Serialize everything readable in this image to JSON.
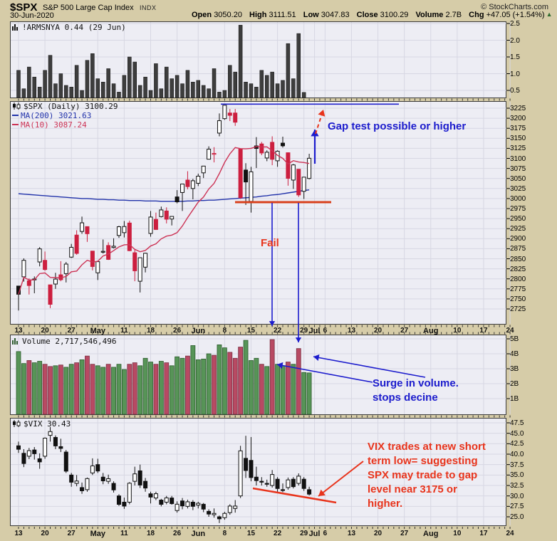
{
  "header": {
    "symbol": "$SPX",
    "name": "S&P 500 Large Cap Index",
    "exchange": "INDX",
    "copyright": "© StockCharts.com",
    "date": "30-Jun-2020",
    "quote": [
      {
        "label": "Open",
        "value": "3050.20"
      },
      {
        "label": "High",
        "value": "3111.51"
      },
      {
        "label": "Low",
        "value": "3047.83"
      },
      {
        "label": "Close",
        "value": "3100.29"
      },
      {
        "label": "Volume",
        "value": "2.7B"
      },
      {
        "label": "Chg",
        "value": "+47.05 (+1.54%)"
      }
    ],
    "chg_direction": "up"
  },
  "panels": {
    "arms": {
      "legend": "!ARMSNYA 0.44 (29 Jun)",
      "yticks": [
        "2.5",
        "2.0",
        "1.5",
        "1.0",
        "0.5"
      ]
    },
    "spx": {
      "legend": "$SPX (Daily) 3100.29",
      "ma200_label": "MA(200) 3021.63",
      "ma10_label": "MA(10) 3087.24"
    },
    "volume": {
      "legend": "Volume 2,717,546,496",
      "yticks": [
        "5B",
        "4B",
        "3B",
        "2B",
        "1B"
      ]
    },
    "vix": {
      "legend": "$VIX 30.43",
      "yticks": [
        "47.5",
        "45.0",
        "42.5",
        "40.0",
        "37.5",
        "35.0",
        "32.5",
        "30.0",
        "27.5",
        "25.0"
      ]
    }
  },
  "annotations": {
    "gap_text": "Gap test possible or higher",
    "fail_text": "Fail",
    "surge_line1": "Surge in volume.",
    "surge_line2": "stops decine",
    "vix_note_lines": [
      "VIX trades at new short",
      "term low= suggesting",
      "SPX may trade to gap",
      "level near 3175 or",
      "higher."
    ]
  },
  "colors": {
    "annotation_blue": "#1c1ccd",
    "annotation_red": "#e8341c",
    "candle_red": "#cc1f3f",
    "candle_black": "#111111",
    "ma200_blue": "#2233aa",
    "ma10_red": "#cc3355",
    "vol_green": "#579457",
    "vol_green_edge": "#2e5c2e",
    "vol_red": "#b84a63",
    "vol_red_edge": "#7a2e42",
    "arms_bar": "#3d3d3d",
    "support_red": "#d8401c",
    "hline_blue": "#2222cc",
    "grid": "#d7d7e3",
    "panel_bg": "#ededf4",
    "page_bg": "#d6cca8"
  },
  "x_axis": {
    "total_days": 94,
    "labels": [
      {
        "t": "13",
        "i": 0
      },
      {
        "t": "20",
        "i": 5
      },
      {
        "t": "27",
        "i": 10
      },
      {
        "t": "May",
        "i": 15,
        "m": 1
      },
      {
        "t": "11",
        "i": 20
      },
      {
        "t": "18",
        "i": 25
      },
      {
        "t": "26",
        "i": 30
      },
      {
        "t": "Jun",
        "i": 34,
        "m": 1
      },
      {
        "t": "8",
        "i": 39
      },
      {
        "t": "15",
        "i": 44
      },
      {
        "t": "22",
        "i": 49
      },
      {
        "t": "29",
        "i": 54
      },
      {
        "t": "Jul",
        "i": 56,
        "m": 1
      },
      {
        "t": "6",
        "i": 58
      },
      {
        "t": "13",
        "i": 63
      },
      {
        "t": "20",
        "i": 68
      },
      {
        "t": "27",
        "i": 73
      },
      {
        "t": "Aug",
        "i": 78,
        "m": 1
      },
      {
        "t": "10",
        "i": 83
      },
      {
        "t": "17",
        "i": 88
      },
      {
        "t": "24",
        "i": 93
      }
    ]
  },
  "chart_data": [
    {
      "type": "bar",
      "title": "!ARMSNYA (NYSE Arms Index / TRIN)",
      "last_value": 0.44,
      "last_date": "29 Jun",
      "ylim": [
        0.22,
        2.56
      ],
      "yticks": [
        2.5,
        2.0,
        1.5,
        1.0,
        0.5
      ],
      "values": [
        1.1,
        0.55,
        1.2,
        0.9,
        0.6,
        1.1,
        1.55,
        0.7,
        1.0,
        0.65,
        0.6,
        1.25,
        0.5,
        1.4,
        1.6,
        0.85,
        0.75,
        1.15,
        0.7,
        0.45,
        0.95,
        1.5,
        1.35,
        0.65,
        0.9,
        0.5,
        1.3,
        0.55,
        1.2,
        0.85,
        0.95,
        0.7,
        1.1,
        0.75,
        0.8,
        0.65,
        0.55,
        1.15,
        0.45,
        0.5,
        1.25,
        1.05,
        2.45,
        0.75,
        0.7,
        0.6,
        1.1,
        0.95,
        1.05,
        0.7,
        0.8,
        1.9,
        0.85,
        2.2,
        0.44
      ]
    },
    {
      "type": "candlestick",
      "title": "$SPX Daily",
      "last_close": 3100.29,
      "ylim": [
        2682,
        3246
      ],
      "ytick_step": 25,
      "ytick_top": 3225,
      "ytick_bottom": 2725,
      "prev_close_seed": 2750,
      "annotation_levels": {
        "gap_line": 3235,
        "support_line": 2991
      },
      "ma200": [
        3012,
        3011,
        3010,
        3009,
        3008,
        3007,
        3006,
        3005,
        3004,
        3003,
        3002,
        3001,
        3000,
        3000,
        2999,
        2998,
        2998,
        2997,
        2997,
        2996,
        2996,
        2995,
        2995,
        2995,
        2994,
        2994,
        2994,
        2993,
        2993,
        2993,
        2993,
        2993,
        2994,
        2994,
        2995,
        2995,
        2996,
        2996,
        2997,
        2998,
        2999,
        3000,
        3001,
        3002,
        3003,
        3004,
        3006,
        3007,
        3009,
        3010,
        3012,
        3014,
        3016,
        3018,
        3020,
        3021.63
      ],
      "ma10_window": 10,
      "ohlc": [
        [
          2782,
          2782,
          2721,
          2761.63
        ],
        [
          2805,
          2851,
          2793,
          2846.06
        ],
        [
          2795,
          2801,
          2761,
          2783.36
        ],
        [
          2799,
          2806,
          2764,
          2799.55
        ],
        [
          2842,
          2879,
          2831,
          2874.56
        ],
        [
          2846,
          2868,
          2820,
          2823.16
        ],
        [
          2785,
          2785,
          2727,
          2736.56
        ],
        [
          2787,
          2815,
          2775,
          2799.31
        ],
        [
          2810,
          2844,
          2794,
          2797.8
        ],
        [
          2813,
          2842,
          2791,
          2836.74
        ],
        [
          2854,
          2887,
          2852,
          2878.48
        ],
        [
          2909,
          2921,
          2860,
          2863.39
        ],
        [
          2918,
          2955,
          2912,
          2939.51
        ],
        [
          2930,
          2930,
          2892,
          2912.43
        ],
        [
          2869,
          2869,
          2821,
          2830.71
        ],
        [
          2815,
          2844,
          2797,
          2842.74
        ],
        [
          2868,
          2898,
          2863,
          2868.44
        ],
        [
          2883,
          2891,
          2847,
          2848.42
        ],
        [
          2878,
          2901,
          2876,
          2881.19
        ],
        [
          2908,
          2932,
          2902,
          2929.8
        ],
        [
          2915,
          2944,
          2903,
          2930.32
        ],
        [
          2939,
          2945,
          2869,
          2870.12
        ],
        [
          2865,
          2874,
          2794,
          2820.0
        ],
        [
          2794,
          2853,
          2766,
          2852.5
        ],
        [
          2829,
          2865,
          2816,
          2863.7
        ],
        [
          2913,
          2969,
          2905,
          2953.91
        ],
        [
          2948,
          2965,
          2922,
          2922.94
        ],
        [
          2955,
          2980,
          2953,
          2971.61
        ],
        [
          2969,
          2978,
          2938,
          2948.51
        ],
        [
          2949,
          2956,
          2933,
          2955.45
        ],
        [
          3004,
          3021,
          2988,
          2991.77
        ],
        [
          3015,
          3036,
          2969,
          3036.13
        ],
        [
          3046,
          3068,
          3023,
          3029.73
        ],
        [
          3025,
          3049,
          2998,
          3044.31
        ],
        [
          3038,
          3062,
          3031,
          3055.73
        ],
        [
          3064,
          3081,
          3051,
          3080.82
        ],
        [
          3098,
          3130,
          3098,
          3122.87
        ],
        [
          3111,
          3128,
          3090,
          3112.35
        ],
        [
          3163,
          3212,
          3155,
          3193.93
        ],
        [
          3199,
          3230,
          3196,
          3232.39
        ],
        [
          3213,
          3223,
          3193,
          3207.18
        ],
        [
          3213,
          3223,
          3181,
          3190.14
        ],
        [
          3123,
          3123,
          2999,
          3002.1
        ],
        [
          3071,
          3088,
          2984,
          3041.31
        ],
        [
          2993,
          3079,
          2965,
          3066.59
        ],
        [
          3131,
          3153,
          3076,
          3124.74
        ],
        [
          3136,
          3141,
          3108,
          3113.49
        ],
        [
          3101,
          3120,
          3093,
          3115.34
        ],
        [
          3140,
          3155,
          3083,
          3097.74
        ],
        [
          3094,
          3120,
          3079,
          3117.86
        ],
        [
          3138,
          3154,
          3127,
          3131.29
        ],
        [
          3114,
          3115,
          3032,
          3050.33
        ],
        [
          3046,
          3086,
          3024,
          3083.76
        ],
        [
          3073,
          3073,
          3004,
          3009.05
        ],
        [
          3018,
          3054,
          2999,
          3053.24
        ],
        [
          3050,
          3111.51,
          3047.83,
          3100.29
        ]
      ]
    },
    {
      "type": "bar",
      "title": "NYSE Volume",
      "last_value_text": "2,717,546,496",
      "unit": "billions",
      "ylim": [
        0,
        5.35
      ],
      "yticks": [
        5,
        4,
        3,
        2,
        1
      ],
      "values": [
        4.15,
        3.35,
        3.55,
        3.4,
        3.5,
        3.3,
        3.15,
        3.2,
        3.25,
        3.1,
        3.3,
        3.4,
        3.6,
        3.85,
        3.3,
        3.2,
        3.1,
        3.3,
        3.1,
        3.3,
        2.95,
        3.3,
        3.4,
        3.2,
        3.7,
        3.45,
        3.3,
        3.5,
        3.4,
        3.2,
        3.8,
        3.7,
        3.85,
        4.55,
        3.6,
        3.65,
        4.0,
        3.9,
        4.6,
        4.4,
        4.1,
        3.7,
        4.45,
        4.9,
        3.55,
        3.7,
        3.3,
        3.15,
        4.95,
        3.3,
        3.2,
        3.45,
        3.3,
        4.35,
        2.75,
        2.72
      ]
    },
    {
      "type": "candlestick",
      "title": "$VIX",
      "last_close": 30.43,
      "ylim": [
        22.6,
        49.2
      ],
      "yticks": [
        47.5,
        45.0,
        42.5,
        40.0,
        37.5,
        35.0,
        32.5,
        30.0,
        27.5,
        25.0
      ],
      "ohlc": [
        [
          42.0,
          43.0,
          40.3,
          41.17
        ],
        [
          40.2,
          41.2,
          36.9,
          37.76
        ],
        [
          39.5,
          41.5,
          38.8,
          40.84
        ],
        [
          41.0,
          41.7,
          38.7,
          40.11
        ],
        [
          38.9,
          40.2,
          36.5,
          38.15
        ],
        [
          39.5,
          44.0,
          38.9,
          43.83
        ],
        [
          44.5,
          46.5,
          43.0,
          45.41
        ],
        [
          44.0,
          44.5,
          41.2,
          41.98
        ],
        [
          41.8,
          43.7,
          40.5,
          41.38
        ],
        [
          40.5,
          41.0,
          35.5,
          35.93
        ],
        [
          35.0,
          35.5,
          32.2,
          33.29
        ],
        [
          33.0,
          35.0,
          32.3,
          33.57
        ],
        [
          32.0,
          33.2,
          30.5,
          31.23
        ],
        [
          31.5,
          34.4,
          31.0,
          34.15
        ],
        [
          35.5,
          39.0,
          35.0,
          37.19
        ],
        [
          37.5,
          38.9,
          35.5,
          35.97
        ],
        [
          34.5,
          35.5,
          32.8,
          33.61
        ],
        [
          33.5,
          35.1,
          32.9,
          34.12
        ],
        [
          33.0,
          33.5,
          30.8,
          31.44
        ],
        [
          30.0,
          30.4,
          27.6,
          27.98
        ],
        [
          28.5,
          29.6,
          26.9,
          27.57
        ],
        [
          28.5,
          33.3,
          28.0,
          33.04
        ],
        [
          33.5,
          37.0,
          32.5,
          35.28
        ],
        [
          36.0,
          37.5,
          31.9,
          32.61
        ],
        [
          33.5,
          34.3,
          31.0,
          31.89
        ],
        [
          30.5,
          31.0,
          28.2,
          29.72
        ],
        [
          29.5,
          31.0,
          29.0,
          30.53
        ],
        [
          29.0,
          29.3,
          27.5,
          27.99
        ],
        [
          28.5,
          30.0,
          28.0,
          29.53
        ],
        [
          29.5,
          30.0,
          27.9,
          28.16
        ],
        [
          26.5,
          28.7,
          26.0,
          28.01
        ],
        [
          28.8,
          29.5,
          26.8,
          27.62
        ],
        [
          27.5,
          29.1,
          27.0,
          28.59
        ],
        [
          28.5,
          29.0,
          26.6,
          27.51
        ],
        [
          27.8,
          28.6,
          27.0,
          28.23
        ],
        [
          28.0,
          28.3,
          26.1,
          26.84
        ],
        [
          26.3,
          26.8,
          25.0,
          25.66
        ],
        [
          25.5,
          27.0,
          24.8,
          25.81
        ],
        [
          25.0,
          25.3,
          23.5,
          24.52
        ],
        [
          24.8,
          26.2,
          24.3,
          25.81
        ],
        [
          26.0,
          28.0,
          25.5,
          27.57
        ],
        [
          27.0,
          29.0,
          26.0,
          27.57
        ],
        [
          30.0,
          42.0,
          29.5,
          40.79
        ],
        [
          39.0,
          44.4,
          34.3,
          36.09
        ],
        [
          38.5,
          44.1,
          33.5,
          34.4
        ],
        [
          34.5,
          37.0,
          32.5,
          33.67
        ],
        [
          33.5,
          34.5,
          32.5,
          33.47
        ],
        [
          33.0,
          33.9,
          32.2,
          32.94
        ],
        [
          32.5,
          36.2,
          32.0,
          35.12
        ],
        [
          34.0,
          34.5,
          31.0,
          31.77
        ],
        [
          31.5,
          33.0,
          30.9,
          31.37
        ],
        [
          32.0,
          34.4,
          31.5,
          33.84
        ],
        [
          34.0,
          34.5,
          31.8,
          32.22
        ],
        [
          33.0,
          35.4,
          32.5,
          34.73
        ],
        [
          34.0,
          34.5,
          31.2,
          31.78
        ],
        [
          31.5,
          32.2,
          30.1,
          30.43
        ]
      ]
    }
  ]
}
